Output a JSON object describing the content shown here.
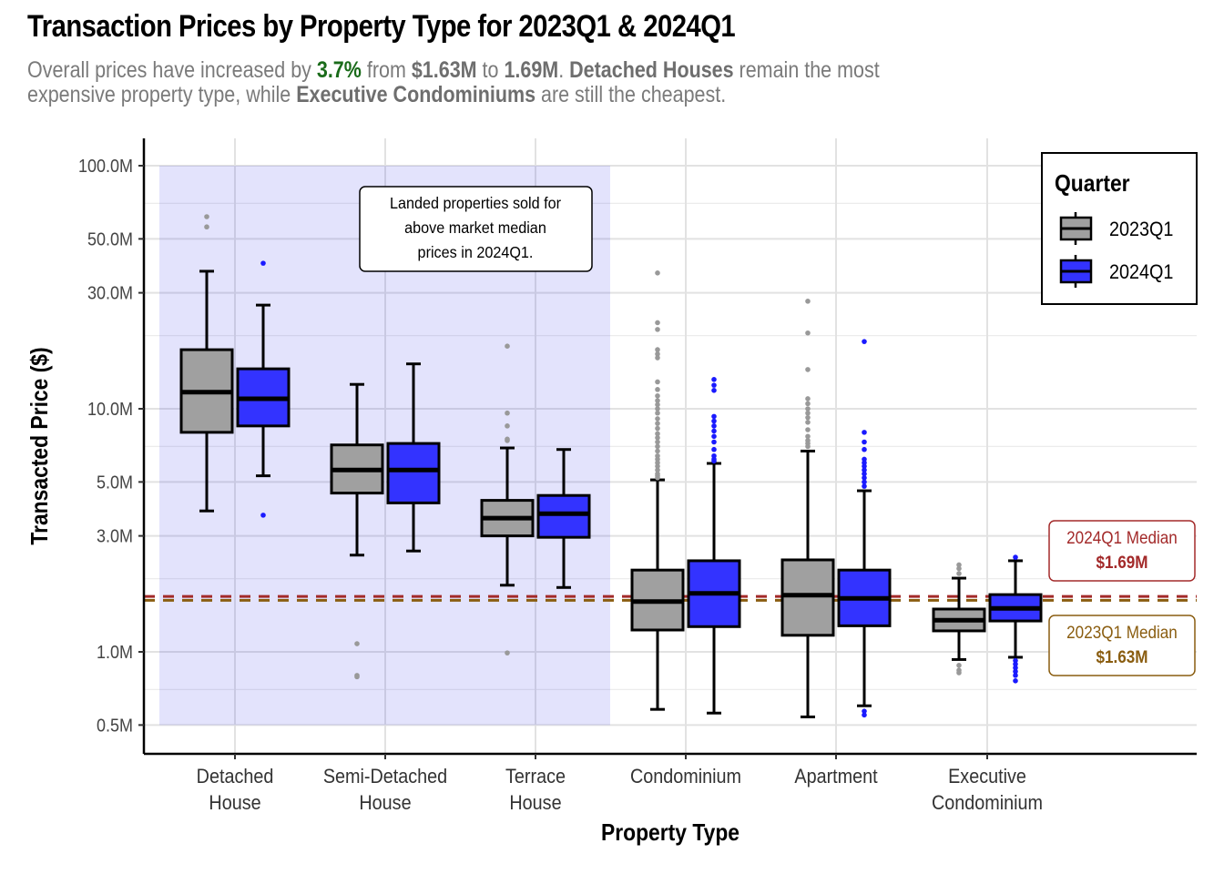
{
  "title": "Transaction Prices by Property Type for 2023Q1 & 2024Q1",
  "subtitle": {
    "line1_parts": [
      "Overall prices have increased by ",
      "3.7%",
      " from ",
      "$1.63M",
      " to ",
      "1.69M",
      ". ",
      "Detached Houses",
      " remain the most"
    ],
    "line2_parts": [
      "expensive property type, while ",
      "Executive Condominiums",
      " are still the cheapest."
    ]
  },
  "chart_data": {
    "type": "boxplot",
    "title": "Transaction Prices by Property Type for 2023Q1 & 2024Q1",
    "xlabel": "Property Type",
    "ylabel": "Transacted Price ($)",
    "yscale": "log10",
    "ylim": [
      0.42,
      130
    ],
    "y_unit": "M",
    "yticks": [
      0.5,
      1.0,
      3.0,
      5.0,
      10.0,
      30.0,
      50.0,
      100.0
    ],
    "ytick_labels": [
      "0.5M",
      "1.0M",
      "3.0M",
      "5.0M",
      "10.0M",
      "30.0M",
      "50.0M",
      "100.0M"
    ],
    "grid": true,
    "categories": [
      "Detached\nHouse",
      "Semi-Detached\nHouse",
      "Terrace\nHouse",
      "Condominium",
      "Apartment",
      "Executive\nCondominium"
    ],
    "category_labels": [
      [
        "Detached",
        "House"
      ],
      [
        "Semi-Detached",
        "House"
      ],
      [
        "Terrace",
        "House"
      ],
      [
        "Condominium"
      ],
      [
        "Apartment"
      ],
      [
        "Executive",
        "Condominium"
      ]
    ],
    "legend": {
      "title": "Quarter",
      "position": "top-right",
      "entries": [
        "2023Q1",
        "2024Q1"
      ]
    },
    "series": [
      {
        "name": "2023Q1",
        "color": "#a0a0a0",
        "outlier_color": "#999999",
        "boxes": [
          {
            "whisker_low": 3.8,
            "q1": 8.0,
            "median": 11.7,
            "q3": 17.5,
            "whisker_high": 36.8,
            "outliers": [
              56.0,
              61.7
            ]
          },
          {
            "whisker_low": 2.5,
            "q1": 4.5,
            "median": 5.6,
            "q3": 7.1,
            "whisker_high": 12.6,
            "outliers": [
              1.08,
              0.8,
              0.79
            ]
          },
          {
            "whisker_low": 1.88,
            "q1": 3.0,
            "median": 3.55,
            "q3": 4.2,
            "whisker_high": 6.9,
            "outliers": [
              18.1,
              9.6,
              8.5,
              7.5,
              7.4,
              0.99
            ]
          },
          {
            "whisker_low": 0.58,
            "q1": 1.23,
            "median": 1.61,
            "q3": 2.17,
            "whisker_high": 5.1,
            "outliers": [
              36.2,
              22.6,
              21.2,
              17.5,
              16.8,
              16.2,
              12.9,
              12.0,
              11.3,
              10.8,
              10.4,
              10.0,
              9.6,
              9.1,
              8.7,
              8.3,
              7.9,
              7.6,
              7.3,
              7.0,
              6.7,
              6.4,
              6.2,
              6.0,
              5.8,
              5.6,
              5.4,
              5.3,
              5.2
            ]
          },
          {
            "whisker_low": 0.54,
            "q1": 1.17,
            "median": 1.71,
            "q3": 2.39,
            "whisker_high": 6.7,
            "outliers": [
              27.7,
              20.5,
              14.5,
              11.0,
              10.5,
              10.0,
              9.6,
              9.2,
              8.8,
              8.2,
              7.7,
              7.4,
              7.2,
              7.0
            ]
          },
          {
            "whisker_low": 0.93,
            "q1": 1.22,
            "median": 1.35,
            "q3": 1.5,
            "whisker_high": 2.01,
            "outliers": [
              2.1,
              2.2,
              2.28,
              0.88,
              0.84,
              0.82
            ]
          }
        ]
      },
      {
        "name": "2024Q1",
        "color": "#3333ff",
        "outlier_color": "#1a1aff",
        "boxes": [
          {
            "whisker_low": 5.3,
            "q1": 8.5,
            "median": 11.0,
            "q3": 14.6,
            "whisker_high": 26.7,
            "outliers": [
              39.7,
              3.65
            ]
          },
          {
            "whisker_low": 2.6,
            "q1": 4.1,
            "median": 5.6,
            "q3": 7.2,
            "whisker_high": 15.3,
            "outliers": []
          },
          {
            "whisker_low": 1.84,
            "q1": 2.96,
            "median": 3.7,
            "q3": 4.4,
            "whisker_high": 6.8,
            "outliers": []
          },
          {
            "whisker_low": 0.56,
            "q1": 1.27,
            "median": 1.74,
            "q3": 2.37,
            "whisker_high": 5.96,
            "outliers": [
              13.2,
              12.5,
              11.9,
              9.3,
              8.9,
              8.5,
              8.1,
              7.7,
              7.3,
              6.8,
              6.4,
              6.2,
              6.1
            ]
          },
          {
            "whisker_low": 0.6,
            "q1": 1.28,
            "median": 1.66,
            "q3": 2.17,
            "whisker_high": 4.6,
            "outliers": [
              18.9,
              8.0,
              7.3,
              6.8,
              6.2,
              6.0,
              5.8,
              5.6,
              5.4,
              5.2,
              5.0,
              4.8,
              0.57,
              0.55
            ]
          },
          {
            "whisker_low": 0.95,
            "q1": 1.34,
            "median": 1.51,
            "q3": 1.72,
            "whisker_high": 2.37,
            "outliers": [
              2.45,
              0.92,
              0.89,
              0.86,
              0.83,
              0.8,
              0.76
            ]
          }
        ]
      }
    ],
    "reference_lines": [
      {
        "label": "2024Q1 Median",
        "value": 1.69,
        "value_label": "$1.69M",
        "color": "#a32a2a",
        "style": "dashed"
      },
      {
        "label": "2023Q1 Median",
        "value": 1.63,
        "value_label": "$1.63M",
        "color": "#8a5d10",
        "style": "dashed"
      }
    ],
    "highlight_region": {
      "categories": [
        "Detached\nHouse",
        "Semi-Detached\nHouse",
        "Terrace\nHouse"
      ],
      "y_range": [
        0.5,
        100
      ],
      "color": "#e3e3fb"
    },
    "annotations": [
      {
        "lines": [
          "Landed properties sold for",
          "above market median",
          "prices in 2024Q1."
        ]
      }
    ]
  }
}
